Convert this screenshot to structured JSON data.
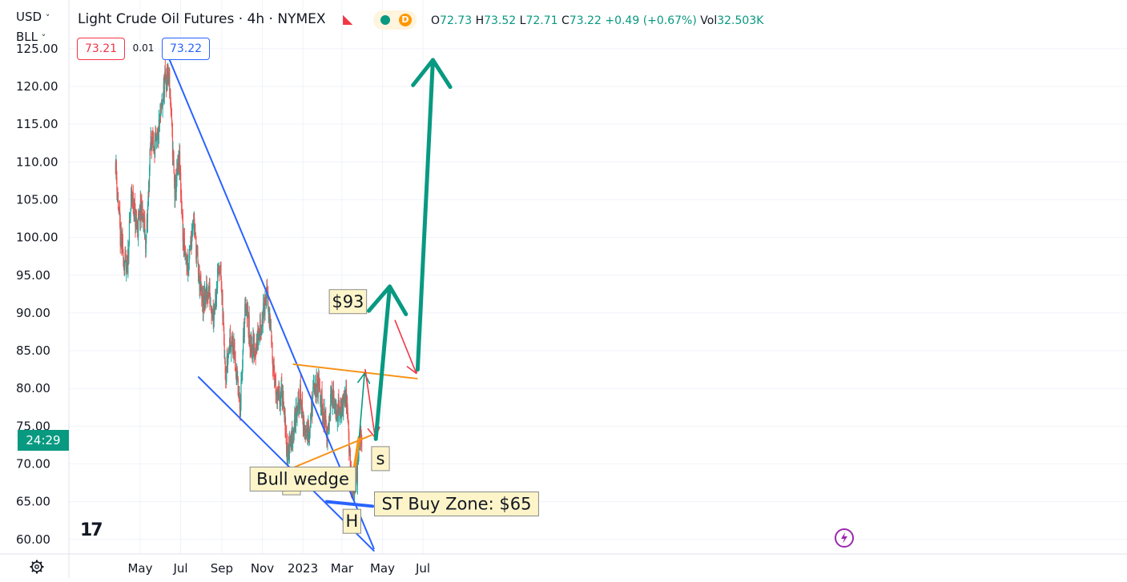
{
  "header": {
    "currency": "USD",
    "currency_caret": "˅",
    "unit": "BLL",
    "unit_caret": "˅",
    "title": "Light Crude Oil Futures · 4h · NYMEX",
    "flag_glyph": "◣",
    "badge_letter": "D",
    "ohlc": {
      "o_label": "O",
      "o_value": "72.73",
      "h_label": "H",
      "h_value": "73.52",
      "l_label": "L",
      "l_value": "72.71",
      "c_label": "C",
      "c_value": "73.22",
      "change": "+0.49 (+0.67%)",
      "vol_label": "Vol",
      "vol_value": "32.503K"
    },
    "bid": "73.21",
    "spread": "0.01",
    "ask": "73.22",
    "accent_up": "#089981",
    "accent_down": "#f23645",
    "blue": "#2962ff"
  },
  "countdown": "24:29",
  "logo_text": "17",
  "settings_icon": "gear-icon",
  "chart_data": {
    "type": "candlestick",
    "title": "Light Crude Oil Futures · 4h · NYMEX",
    "xlabel": "",
    "ylabel": "",
    "ylim": [
      57.5,
      126
    ],
    "y_ticks": [
      "125.00",
      "120.00",
      "115.00",
      "110.00",
      "105.00",
      "100.00",
      "95.00",
      "90.00",
      "85.00",
      "80.00",
      "75.00",
      "70.00",
      "65.00",
      "60.00"
    ],
    "x_ticks": [
      {
        "label": "May",
        "date": "2022-05-01"
      },
      {
        "label": "Jul",
        "date": "2022-07-01"
      },
      {
        "label": "Sep",
        "date": "2022-09-01"
      },
      {
        "label": "Nov",
        "date": "2022-11-01"
      },
      {
        "label": "2023",
        "date": "2023-01-01"
      },
      {
        "label": "Mar",
        "date": "2023-03-01"
      },
      {
        "label": "May",
        "date": "2023-05-01"
      },
      {
        "label": "Jul",
        "date": "2023-07-01"
      }
    ],
    "price_path": [
      [
        "2022-03-25",
        110
      ],
      [
        "2022-04-01",
        100
      ],
      [
        "2022-04-11",
        95
      ],
      [
        "2022-04-18",
        106
      ],
      [
        "2022-04-26",
        101
      ],
      [
        "2022-05-03",
        104
      ],
      [
        "2022-05-10",
        99
      ],
      [
        "2022-05-17",
        113
      ],
      [
        "2022-05-26",
        112
      ],
      [
        "2022-06-08",
        121
      ],
      [
        "2022-06-14",
        121
      ],
      [
        "2022-06-22",
        106
      ],
      [
        "2022-06-29",
        110
      ],
      [
        "2022-07-06",
        98
      ],
      [
        "2022-07-13",
        96
      ],
      [
        "2022-07-20",
        103
      ],
      [
        "2022-07-27",
        96
      ],
      [
        "2022-08-03",
        91
      ],
      [
        "2022-08-12",
        93
      ],
      [
        "2022-08-19",
        90
      ],
      [
        "2022-08-29",
        97
      ],
      [
        "2022-09-07",
        82
      ],
      [
        "2022-09-14",
        87
      ],
      [
        "2022-09-21",
        84
      ],
      [
        "2022-09-28",
        77
      ],
      [
        "2022-10-07",
        92
      ],
      [
        "2022-10-14",
        86
      ],
      [
        "2022-10-21",
        85
      ],
      [
        "2022-11-01",
        89
      ],
      [
        "2022-11-07",
        93
      ],
      [
        "2022-11-16",
        85
      ],
      [
        "2022-11-23",
        78
      ],
      [
        "2022-11-30",
        80
      ],
      [
        "2022-12-06",
        74
      ],
      [
        "2022-12-09",
        71
      ],
      [
        "2022-12-16",
        74
      ],
      [
        "2022-12-28",
        79
      ],
      [
        "2023-01-04",
        74
      ],
      [
        "2023-01-11",
        75
      ],
      [
        "2023-01-18",
        80
      ],
      [
        "2023-01-25",
        80
      ],
      [
        "2023-02-01",
        77
      ],
      [
        "2023-02-06",
        74
      ],
      [
        "2023-02-13",
        79
      ],
      [
        "2023-02-20",
        77
      ],
      [
        "2023-02-27",
        77
      ],
      [
        "2023-03-06",
        80
      ],
      [
        "2023-03-10",
        76
      ],
      [
        "2023-03-15",
        67
      ],
      [
        "2023-03-20",
        67
      ],
      [
        "2023-03-24",
        69
      ],
      [
        "2023-03-28",
        73
      ],
      [
        "2023-03-31",
        73
      ]
    ],
    "candle_up_color": "#26a69a",
    "candle_down_color": "#ef5350",
    "trendlines": [
      {
        "name": "wedge-top",
        "color": "#2962ff",
        "from": [
          "2022-06-12",
          124
        ],
        "to": [
          "2023-04-18",
          58.8
        ]
      },
      {
        "name": "wedge-bottom",
        "color": "#2962ff",
        "from": [
          "2022-07-28",
          81.5
        ],
        "to": [
          "2023-04-18",
          58.5
        ]
      },
      {
        "name": "neckline-top",
        "color": "#f7931a",
        "from": [
          "2022-12-18",
          83.2
        ],
        "to": [
          "2023-06-22",
          81.3
        ]
      },
      {
        "name": "wedge-line",
        "color": "#f7931a",
        "from": [
          "2022-12-20",
          69.6
        ],
        "to": [
          "2023-04-14",
          73.8
        ]
      },
      {
        "name": "buy-zone-line",
        "color": "#2962ff",
        "from": [
          "2023-02-06",
          65
        ],
        "to": [
          "2023-04-16",
          64.4
        ]
      },
      {
        "name": "breakout-stub",
        "color": "#f7931a",
        "from": [
          "2023-03-20",
          69.5
        ],
        "to": [
          "2023-03-27",
          73.5
        ]
      }
    ],
    "projection_arrows": [
      {
        "name": "green-up-short",
        "color": "#089981",
        "points": [
          [
            "2023-03-27",
            73.5
          ],
          [
            "2023-04-04",
            82
          ]
        ]
      },
      {
        "name": "red-down-short",
        "color": "#f23645",
        "points": [
          [
            "2023-04-05",
            82.5
          ],
          [
            "2023-04-20",
            73.5
          ]
        ]
      },
      {
        "name": "green-up-93",
        "color": "#089981",
        "points": [
          [
            "2023-04-21",
            73.3
          ],
          [
            "2023-05-12",
            93.5
          ]
        ]
      },
      {
        "name": "red-down-81",
        "color": "#f23645",
        "points": [
          [
            "2023-05-20",
            89
          ],
          [
            "2023-06-21",
            82
          ]
        ]
      },
      {
        "name": "green-up-big",
        "color": "#089981",
        "points": [
          [
            "2023-06-23",
            82.5
          ],
          [
            "2023-07-16",
            123.5
          ]
        ]
      }
    ],
    "annotations": [
      {
        "name": "label-93",
        "text": "$93",
        "at": [
          "2023-03-10",
          91.5
        ]
      },
      {
        "name": "label-s-left",
        "text": "s",
        "at": [
          "2022-12-15",
          67.5
        ]
      },
      {
        "name": "label-bull-wedge",
        "text": "Bull wedge",
        "at": [
          "2023-01-01",
          68.0
        ]
      },
      {
        "name": "label-h",
        "text": "H",
        "at": [
          "2023-03-16",
          62.4
        ]
      },
      {
        "name": "label-s-right",
        "text": "s",
        "at": [
          "2023-04-28",
          70.7
        ]
      },
      {
        "name": "label-buy-zone",
        "text": "ST Buy Zone: $65",
        "at": [
          "2023-04-19",
          64.7
        ]
      }
    ]
  }
}
